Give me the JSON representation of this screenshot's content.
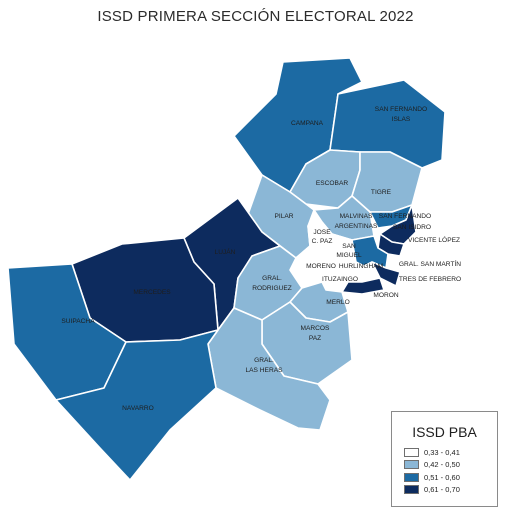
{
  "title": "ISSD PRIMERA SECCIÓN ELECTORAL 2022",
  "palette": {
    "c1": "#ffffff",
    "c2": "#8bb7d6",
    "c3": "#1c6aa3",
    "c4": "#0d2b5e"
  },
  "legend": {
    "title": "ISSD PBA",
    "items": [
      {
        "label": "0,33 - 0,41",
        "class": "c1"
      },
      {
        "label": "0,42 - 0,50",
        "class": "c2"
      },
      {
        "label": "0,51 - 0,60",
        "class": "c3"
      },
      {
        "label": "0,61 - 0,70",
        "class": "c4"
      }
    ]
  },
  "districts": [
    {
      "name": "CAMPANA",
      "class": "c3",
      "label": [
        "CAMPANA"
      ]
    },
    {
      "name": "SAN FERNANDO ISLAS",
      "class": "c3",
      "label": [
        "SAN FERNANDO",
        "ISLAS"
      ]
    },
    {
      "name": "ESCOBAR",
      "class": "c2",
      "label": [
        "ESCOBAR"
      ]
    },
    {
      "name": "TIGRE",
      "class": "c2",
      "label": [
        "TIGRE"
      ]
    },
    {
      "name": "PILAR",
      "class": "c2",
      "label": [
        "PILAR"
      ]
    },
    {
      "name": "MALVINAS ARGENTINAS",
      "class": "c2",
      "label": [
        "MALVINAS",
        "ARGENTINAS"
      ]
    },
    {
      "name": "SAN FERNANDO",
      "class": "c3",
      "label": [
        "SAN FERNANDO"
      ]
    },
    {
      "name": "SAN ISIDRO",
      "class": "c4",
      "label": [
        "SAN ISIDRO"
      ]
    },
    {
      "name": "VICENTE LÓPEZ",
      "class": "c4",
      "label": [
        "VICENTE LÓPEZ"
      ]
    },
    {
      "name": "JOSÉ C. PAZ",
      "class": "c1",
      "label": [
        "JOSE",
        "C. PAZ"
      ]
    },
    {
      "name": "SAN MIGUEL",
      "class": "c1",
      "label": [
        "SAN",
        "MIGUEL"
      ]
    },
    {
      "name": "HURLINGHAM",
      "class": "c1",
      "label": [
        "HURLINGHAM"
      ]
    },
    {
      "name": "GRAL. SAN MARTÍN",
      "class": "c3",
      "label": [
        "GRAL. SAN MARTÍN"
      ]
    },
    {
      "name": "TRES DE FEBRERO",
      "class": "c4",
      "label": [
        "TRES DE FEBRERO"
      ]
    },
    {
      "name": "ITUZAINGÓ",
      "class": "c1",
      "label": [
        "ITUZAINGO"
      ]
    },
    {
      "name": "MORÓN",
      "class": "c4",
      "label": [
        "MORON"
      ]
    },
    {
      "name": "MORENO",
      "class": "c1",
      "label": [
        "MORENO"
      ]
    },
    {
      "name": "LUJÁN",
      "class": "c4",
      "label": [
        "LUJÁN"
      ]
    },
    {
      "name": "MERCEDES",
      "class": "c4",
      "label": [
        "MERCEDES"
      ]
    },
    {
      "name": "SUIPACHA",
      "class": "c3",
      "label": [
        "SUIPACHA"
      ]
    },
    {
      "name": "GRAL. RODRÍGUEZ",
      "class": "c2",
      "label": [
        "GRAL.",
        "RODRIGUEZ"
      ]
    },
    {
      "name": "MERLO",
      "class": "c2",
      "label": [
        "MERLO"
      ]
    },
    {
      "name": "MARCOS PAZ",
      "class": "c2",
      "label": [
        "MARCOS",
        "PAZ"
      ]
    },
    {
      "name": "GRAL. LAS HERAS",
      "class": "c2",
      "label": [
        "GRAL.",
        "LAS HERAS"
      ]
    },
    {
      "name": "NAVARRO",
      "class": "c3",
      "label": [
        "NAVARRO"
      ]
    }
  ]
}
